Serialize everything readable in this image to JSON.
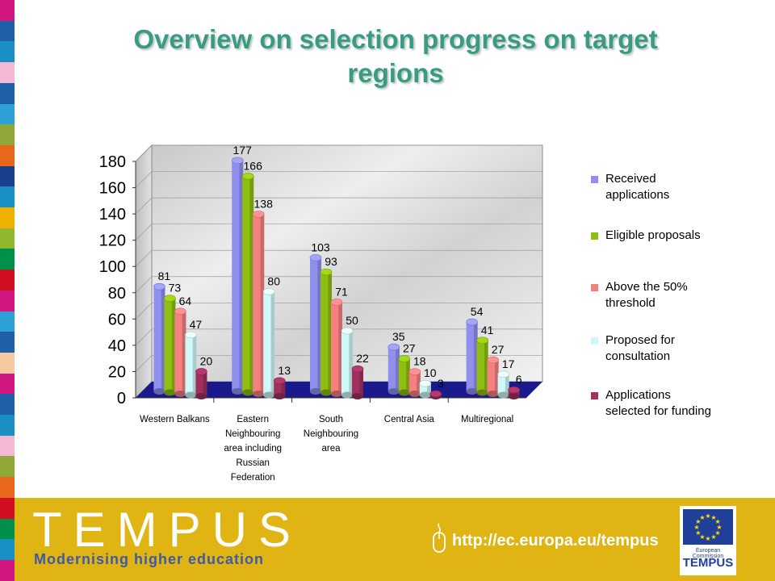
{
  "title": "Overview on selection progress on target regions",
  "footer": {
    "logo_text": "TEMPUS",
    "tagline": "Modernising higher education",
    "url": "http://ec.europa.eu/tempus",
    "ec_label_small": "European Commission",
    "ec_label": "TEMPUS"
  },
  "colors": {
    "title": "#3a9a84",
    "footer_bg": "#e0b413",
    "floor": "#1a1a8c",
    "stripe": [
      "#d01880",
      "#1f5fa8",
      "#1a8fc4",
      "#f2b8d4",
      "#1f5fa8",
      "#2da0d8",
      "#8fa838",
      "#e8671a",
      "#1a3f8c",
      "#1a8fc4",
      "#f0b000",
      "#8fb830",
      "#00904a",
      "#d01020",
      "#d01880",
      "#2da0d8",
      "#1f5fa8",
      "#f8c8a0",
      "#d01880",
      "#1f5fa8",
      "#1a8fc4",
      "#f2b8d4",
      "#8fa838",
      "#e8671a",
      "#d01020",
      "#00904a",
      "#1a8fc4",
      "#d01880"
    ]
  },
  "chart_data": {
    "type": "bar",
    "title": "",
    "xlabel": "",
    "ylabel": "",
    "ylim": [
      0,
      180
    ],
    "yticks": [
      0,
      20,
      40,
      60,
      80,
      100,
      120,
      140,
      160,
      180
    ],
    "grid": false,
    "legend_position": "right",
    "categories": [
      [
        "Western Balkans"
      ],
      [
        "Eastern",
        "Neighbouring",
        "area including",
        "Russian",
        "Federation"
      ],
      [
        "South",
        "Neighbouring",
        "area"
      ],
      [
        "Central Asia"
      ],
      [
        "Multiregional"
      ]
    ],
    "series": [
      {
        "name": "Received applications",
        "legend_lines": [
          "Received",
          "applications"
        ],
        "color": "#8f8fee",
        "values": [
          81,
          177,
          103,
          35,
          54
        ]
      },
      {
        "name": "Eligible proposals",
        "legend_lines": [
          "Eligible proposals"
        ],
        "color": "#8fbe12",
        "values": [
          73,
          166,
          93,
          27,
          41
        ]
      },
      {
        "name": "Above the 50% threshold",
        "legend_lines": [
          "Above the 50%",
          "threshold"
        ],
        "color": "#f48080",
        "values": [
          64,
          138,
          71,
          18,
          27
        ]
      },
      {
        "name": "Proposed for consultation",
        "legend_lines": [
          "Proposed for",
          "consultation"
        ],
        "color": "#cff8f8",
        "values": [
          47,
          80,
          50,
          10,
          17
        ]
      },
      {
        "name": "Applications selected for funding",
        "legend_lines": [
          "Applications",
          "selected for funding"
        ],
        "color": "#a03060",
        "values": [
          20,
          13,
          22,
          3,
          6
        ]
      }
    ]
  }
}
